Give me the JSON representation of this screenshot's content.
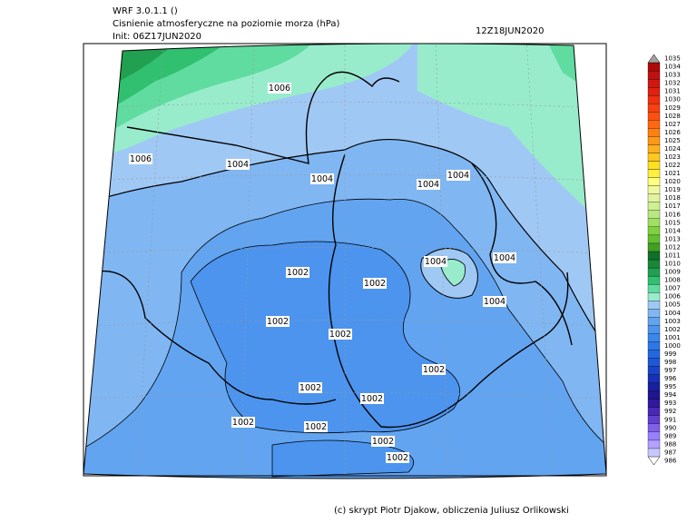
{
  "header": {
    "lines": [
      "WRF 3.0.1.1 ()",
      "Cisnienie atmosferyczne na poziomie morza (hPa)",
      "Init: 06Z17JUN2020"
    ],
    "valid": "12Z18JUN2020"
  },
  "contour_labels": [
    1006,
    1006,
    1004,
    1004,
    1004,
    1004,
    1004,
    1004,
    1004,
    1002,
    1002,
    1002,
    1002,
    1002,
    1002,
    1002,
    1002,
    1002,
    1002,
    1002
  ],
  "colorbar": {
    "levels": [
      986,
      987,
      988,
      989,
      990,
      991,
      992,
      993,
      994,
      995,
      996,
      997,
      998,
      999,
      1000,
      1001,
      1002,
      1003,
      1004,
      1005,
      1006,
      1007,
      1008,
      1009,
      1010,
      1011,
      1012,
      1013,
      1014,
      1015,
      1016,
      1017,
      1018,
      1019,
      1020,
      1021,
      1022,
      1023,
      1024,
      1025,
      1026,
      1027,
      1028,
      1029,
      1030,
      1031,
      1032,
      1033,
      1034,
      1035
    ],
    "colors": [
      "#ffffff",
      "#c8c8ff",
      "#b4a0ff",
      "#9a80ff",
      "#8060e8",
      "#6040d0",
      "#4828b8",
      "#3018a0",
      "#201490",
      "#1820a0",
      "#1830b8",
      "#1a44c8",
      "#1e58d8",
      "#2468e0",
      "#2c78e8",
      "#3a88ec",
      "#4c94ee",
      "#62a4f0",
      "#80b6f2",
      "#a0c8f4",
      "#98eccc",
      "#60dca0",
      "#30c070",
      "#20a050",
      "#188838",
      "#107028",
      "#40a020",
      "#60c030",
      "#80d040",
      "#a0e060",
      "#b8e880",
      "#cef090",
      "#e0f4a0",
      "#f0f8a0",
      "#ffff80",
      "#fff040",
      "#ffe020",
      "#ffc820",
      "#ffb020",
      "#ff9818",
      "#ff8010",
      "#ff6810",
      "#ff5010",
      "#f84010",
      "#f03010",
      "#e02010",
      "#d01810",
      "#c01010",
      "#b00808",
      "#a0a0a0"
    ]
  },
  "footer": "(c) skrypt Piotr Djakow, obliczenia Juliusz Orlikowski"
}
